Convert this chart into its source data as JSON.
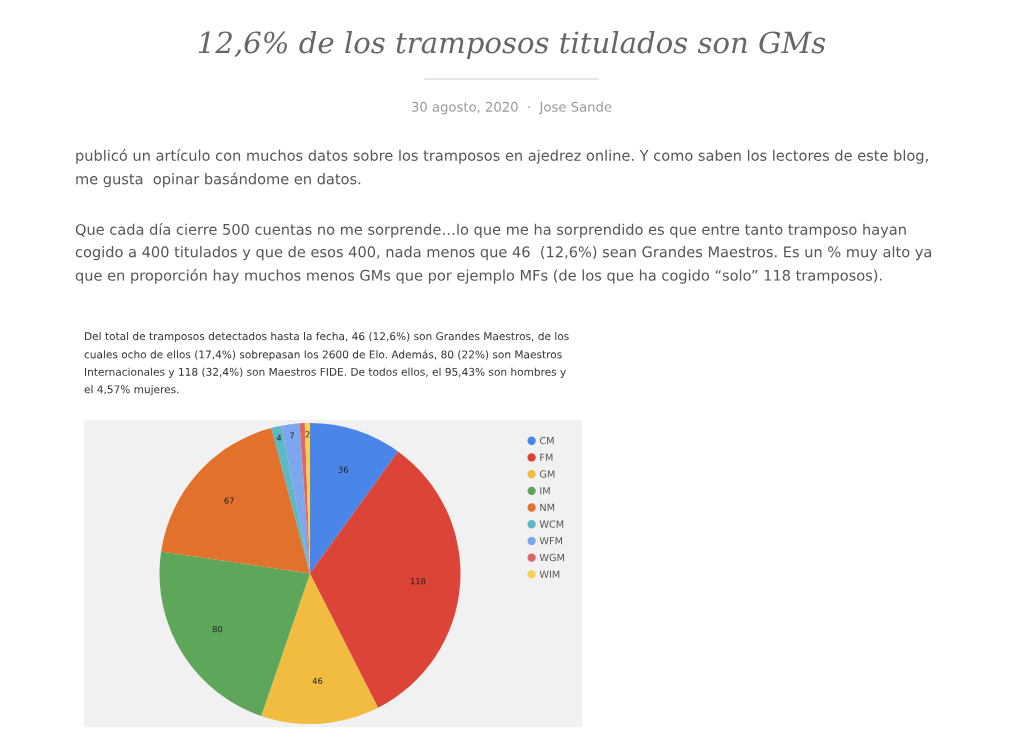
{
  "chart_data": {
    "type": "pie",
    "title": "12,6% de los tramposos titulados son GMs",
    "subtitle": "Del total de tramposos detectados hasta la fecha, 46 (12,6%) son Grandes Maestros, de los cuales ocho de ellos (17,4%) sobrepasan los 2600 de Elo. Además, 80 (22%) son Maestros Internacionales y 118 (32,4%) son Maestros FIDE. De todos ellos, el 95,43% son hombres y el 4,57% mujeres.",
    "annotations": [
      "30 agosto, 2020  ·  Jose Sande",
      "publicó un artículo con muchos datos sobre los tramposos en ajedrez online. Y como saben los lectores de este blog, me gusta  opinar basándome en datos.",
      "Que cada día cierre 500 cuentas no me sorprende…lo que me ha sorprendido es que entre tanto tramposo hayan cogido a 400 titulados y que de esos 400, nada menos que 46  (12,6%) sean Grandes Maestros. Es un % muy alto ya que en proporción hay muchos menos GMs que por ejemplo MFs (de los que ha cogido “solo” 118 tramposos)."
    ],
    "categories": [
      "CM",
      "FM",
      "GM",
      "IM",
      "NM",
      "WCM",
      "WFM",
      "WGM",
      "WIM"
    ],
    "values": [
      36,
      118,
      46,
      80,
      67,
      4,
      7,
      2,
      2
    ],
    "value_labels": [
      "36",
      "118",
      "46",
      "80",
      "67",
      "4",
      "7",
      null,
      "2"
    ],
    "colors": [
      "#4a86e8",
      "#db4437",
      "#f1bc3f",
      "#5ea65a",
      "#e2712b",
      "#5bb8c4",
      "#7ea6ee",
      "#e06666",
      "#f6cf55"
    ],
    "legend": "right"
  }
}
